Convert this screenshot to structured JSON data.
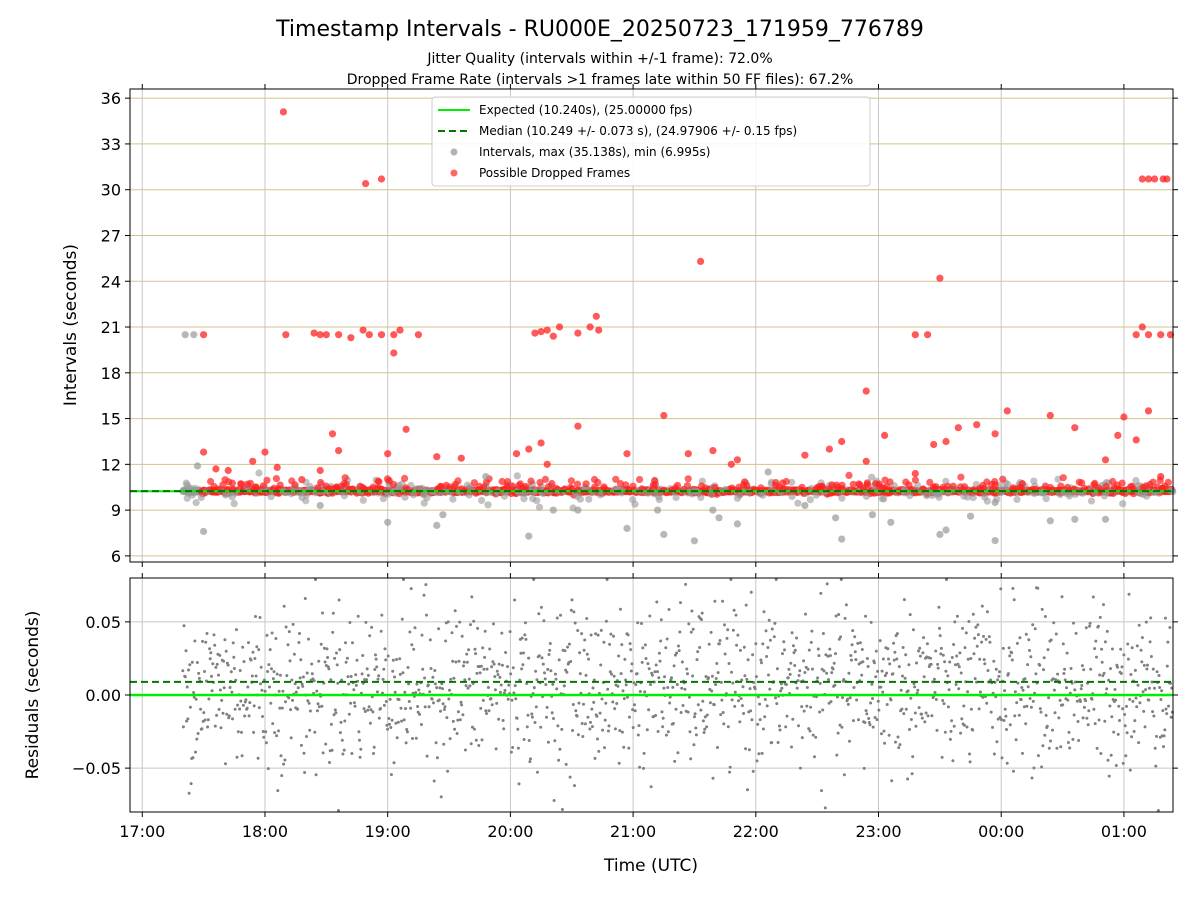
{
  "chart_data": {
    "title": "Timestamp Intervals - RU000E_20250723_171959_776789",
    "subtitle_1": "Jitter Quality (intervals within +/-1 frame): 72.0%",
    "subtitle_2": "Dropped Frame Rate (intervals >1 frames late within 50 FF files): 67.2%",
    "xlabel": "Time (UTC)",
    "x_tick_labels": [
      "17:00",
      "18:00",
      "19:00",
      "20:00",
      "21:00",
      "22:00",
      "23:00",
      "00:00",
      "01:00"
    ],
    "x_range_hours": [
      16.9,
      25.4
    ],
    "top_panel": {
      "type": "scatter",
      "ylabel": "Intervals (seconds)",
      "ylim": [
        5.6,
        36.6
      ],
      "y_ticks": [
        6,
        9,
        12,
        15,
        18,
        21,
        24,
        27,
        30,
        33,
        36
      ],
      "expected_value": 10.24,
      "median_value": 10.249,
      "legend": [
        {
          "label": "Expected (10.240s), (25.00000 fps)",
          "style": "solid-line",
          "color": "#00ee00"
        },
        {
          "label": "Median (10.249 +/- 0.073 s), (24.97906 +/- 0.15 fps)",
          "style": "dashed-line",
          "color": "#007700"
        },
        {
          "label": "Intervals, max (35.138s), min (6.995s)",
          "style": "marker",
          "color": "#999999"
        },
        {
          "label": "Possible Dropped Frames",
          "style": "marker",
          "color": "#ff3333"
        }
      ],
      "legend_position": "top-center",
      "series_dropped": [
        [
          17.5,
          20.5
        ],
        [
          18.15,
          35.1
        ],
        [
          18.17,
          20.5
        ],
        [
          18.4,
          20.6
        ],
        [
          18.45,
          20.5
        ],
        [
          18.5,
          20.5
        ],
        [
          18.6,
          20.5
        ],
        [
          18.7,
          20.3
        ],
        [
          18.8,
          20.8
        ],
        [
          18.85,
          20.5
        ],
        [
          18.95,
          20.5
        ],
        [
          19.05,
          20.5
        ],
        [
          19.1,
          20.8
        ],
        [
          19.25,
          20.5
        ],
        [
          19.05,
          19.3
        ],
        [
          18.82,
          30.4
        ],
        [
          18.95,
          30.7
        ],
        [
          20.2,
          20.6
        ],
        [
          20.25,
          20.7
        ],
        [
          20.3,
          20.8
        ],
        [
          20.35,
          20.4
        ],
        [
          20.4,
          21.0
        ],
        [
          20.55,
          20.6
        ],
        [
          20.65,
          21.0
        ],
        [
          20.7,
          21.7
        ],
        [
          20.72,
          20.8
        ],
        [
          21.55,
          25.3
        ],
        [
          22.9,
          16.8
        ],
        [
          23.4,
          20.5
        ],
        [
          23.5,
          24.2
        ],
        [
          25.1,
          20.5
        ],
        [
          25.15,
          21.0
        ],
        [
          25.2,
          20.5
        ],
        [
          25.3,
          20.5
        ],
        [
          25.38,
          20.5
        ],
        [
          25.2,
          30.7
        ],
        [
          25.15,
          30.7
        ],
        [
          25.25,
          30.7
        ],
        [
          25.32,
          30.7
        ],
        [
          25.35,
          30.7
        ],
        [
          17.5,
          12.8
        ],
        [
          17.6,
          11.7
        ],
        [
          17.7,
          11.6
        ],
        [
          17.9,
          12.2
        ],
        [
          18.0,
          12.8
        ],
        [
          18.1,
          11.8
        ],
        [
          18.3,
          11.0
        ],
        [
          18.45,
          11.6
        ],
        [
          18.55,
          14.0
        ],
        [
          18.6,
          12.9
        ],
        [
          19.0,
          12.7
        ],
        [
          19.15,
          14.3
        ],
        [
          19.4,
          12.5
        ],
        [
          19.6,
          12.4
        ],
        [
          20.05,
          12.7
        ],
        [
          20.15,
          13.0
        ],
        [
          20.25,
          13.4
        ],
        [
          20.3,
          12.0
        ],
        [
          20.55,
          14.5
        ],
        [
          20.95,
          12.7
        ],
        [
          21.25,
          15.2
        ],
        [
          21.45,
          12.7
        ],
        [
          21.65,
          12.9
        ],
        [
          21.8,
          12.0
        ],
        [
          21.85,
          12.3
        ],
        [
          22.4,
          12.6
        ],
        [
          22.6,
          13.0
        ],
        [
          22.7,
          13.5
        ],
        [
          22.9,
          12.2
        ],
        [
          23.05,
          13.9
        ],
        [
          23.3,
          20.5
        ],
        [
          23.3,
          11.4
        ],
        [
          23.45,
          13.3
        ],
        [
          23.55,
          13.5
        ],
        [
          23.65,
          14.4
        ],
        [
          23.8,
          14.6
        ],
        [
          23.95,
          14.0
        ],
        [
          24.05,
          15.5
        ],
        [
          24.4,
          15.2
        ],
        [
          24.6,
          14.4
        ],
        [
          24.85,
          12.3
        ],
        [
          24.95,
          13.9
        ],
        [
          25.0,
          15.1
        ],
        [
          25.1,
          13.6
        ],
        [
          25.2,
          15.5
        ],
        [
          25.3,
          11.2
        ]
      ],
      "series_grey_outliers": [
        [
          17.35,
          20.5
        ],
        [
          17.42,
          20.5
        ],
        [
          17.45,
          11.9
        ],
        [
          17.5,
          7.6
        ],
        [
          18.45,
          9.3
        ],
        [
          19.0,
          8.2
        ],
        [
          19.4,
          8.0
        ],
        [
          19.45,
          8.7
        ],
        [
          19.8,
          11.2
        ],
        [
          20.15,
          7.3
        ],
        [
          20.35,
          9.0
        ],
        [
          20.55,
          9.0
        ],
        [
          20.95,
          7.8
        ],
        [
          21.2,
          9.0
        ],
        [
          21.25,
          7.4
        ],
        [
          21.5,
          6.99
        ],
        [
          21.65,
          9.0
        ],
        [
          21.7,
          8.5
        ],
        [
          21.85,
          8.1
        ],
        [
          22.1,
          11.5
        ],
        [
          22.4,
          9.3
        ],
        [
          22.65,
          8.5
        ],
        [
          22.7,
          7.1
        ],
        [
          22.95,
          8.7
        ],
        [
          23.1,
          8.2
        ],
        [
          23.5,
          7.4
        ],
        [
          23.55,
          7.7
        ],
        [
          23.75,
          8.6
        ],
        [
          23.95,
          7.0
        ],
        [
          23.95,
          9.5
        ],
        [
          24.4,
          8.3
        ],
        [
          24.6,
          8.4
        ],
        [
          24.85,
          8.4
        ]
      ]
    },
    "bottom_panel": {
      "type": "scatter",
      "ylabel": "Residuals (seconds)",
      "ylim": [
        -0.08,
        0.08
      ],
      "y_ticks": [
        -0.05,
        0.0,
        0.05
      ],
      "y_tick_labels": [
        "−0.05",
        "0.00",
        "0.05"
      ],
      "expected_residual": 0.0,
      "median_residual": 0.009,
      "point_color": "#808080"
    },
    "grid": true
  }
}
